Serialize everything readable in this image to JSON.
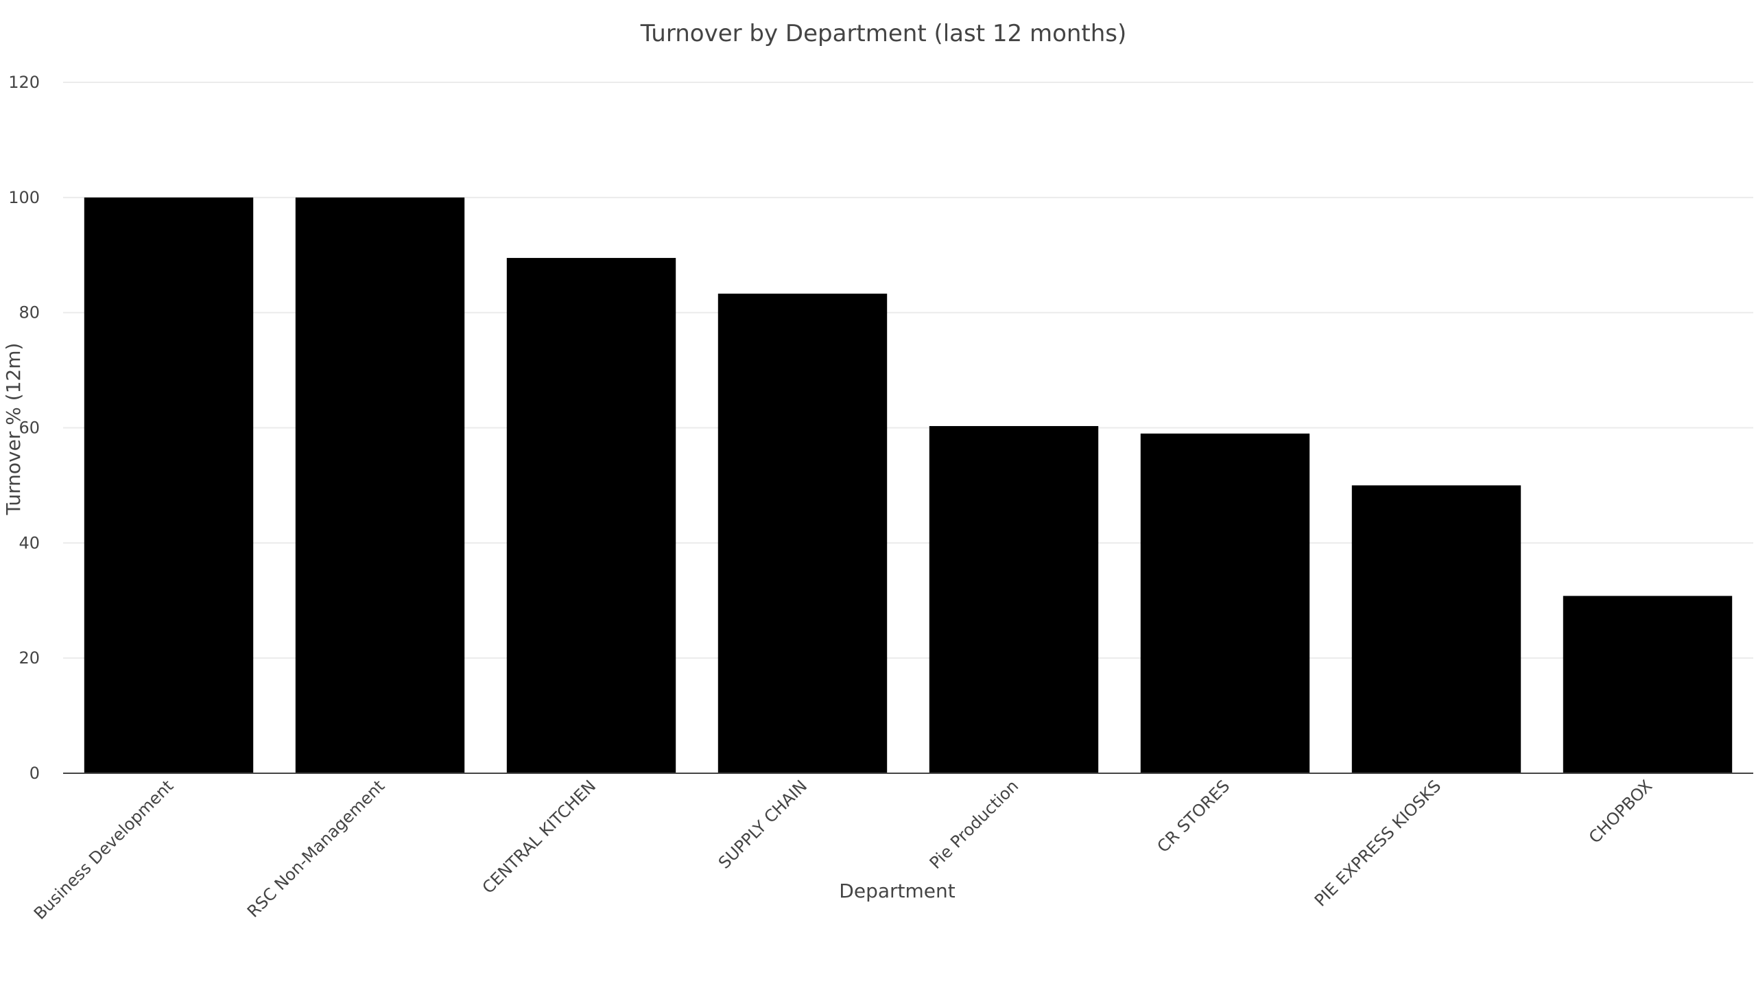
{
  "chart_data": {
    "type": "bar",
    "title": "Turnover by Department (last 12 months)",
    "xlabel": "Department",
    "ylabel": "Turnover % (12m)",
    "categories": [
      "Business Development",
      "RSC Non-Management",
      "CENTRAL KITCHEN",
      "SUPPLY CHAIN",
      "Pie Production",
      "CR STORES",
      "PIE EXPRESS KIOSKS",
      "CHOPBOX"
    ],
    "values": [
      100,
      100,
      89.5,
      83.3,
      60.3,
      59.0,
      50.0,
      30.8
    ],
    "ylim": [
      0,
      120
    ],
    "yticks": [
      0,
      20,
      40,
      60,
      80,
      100,
      120
    ],
    "grid": true,
    "bar_color": "#000000"
  }
}
